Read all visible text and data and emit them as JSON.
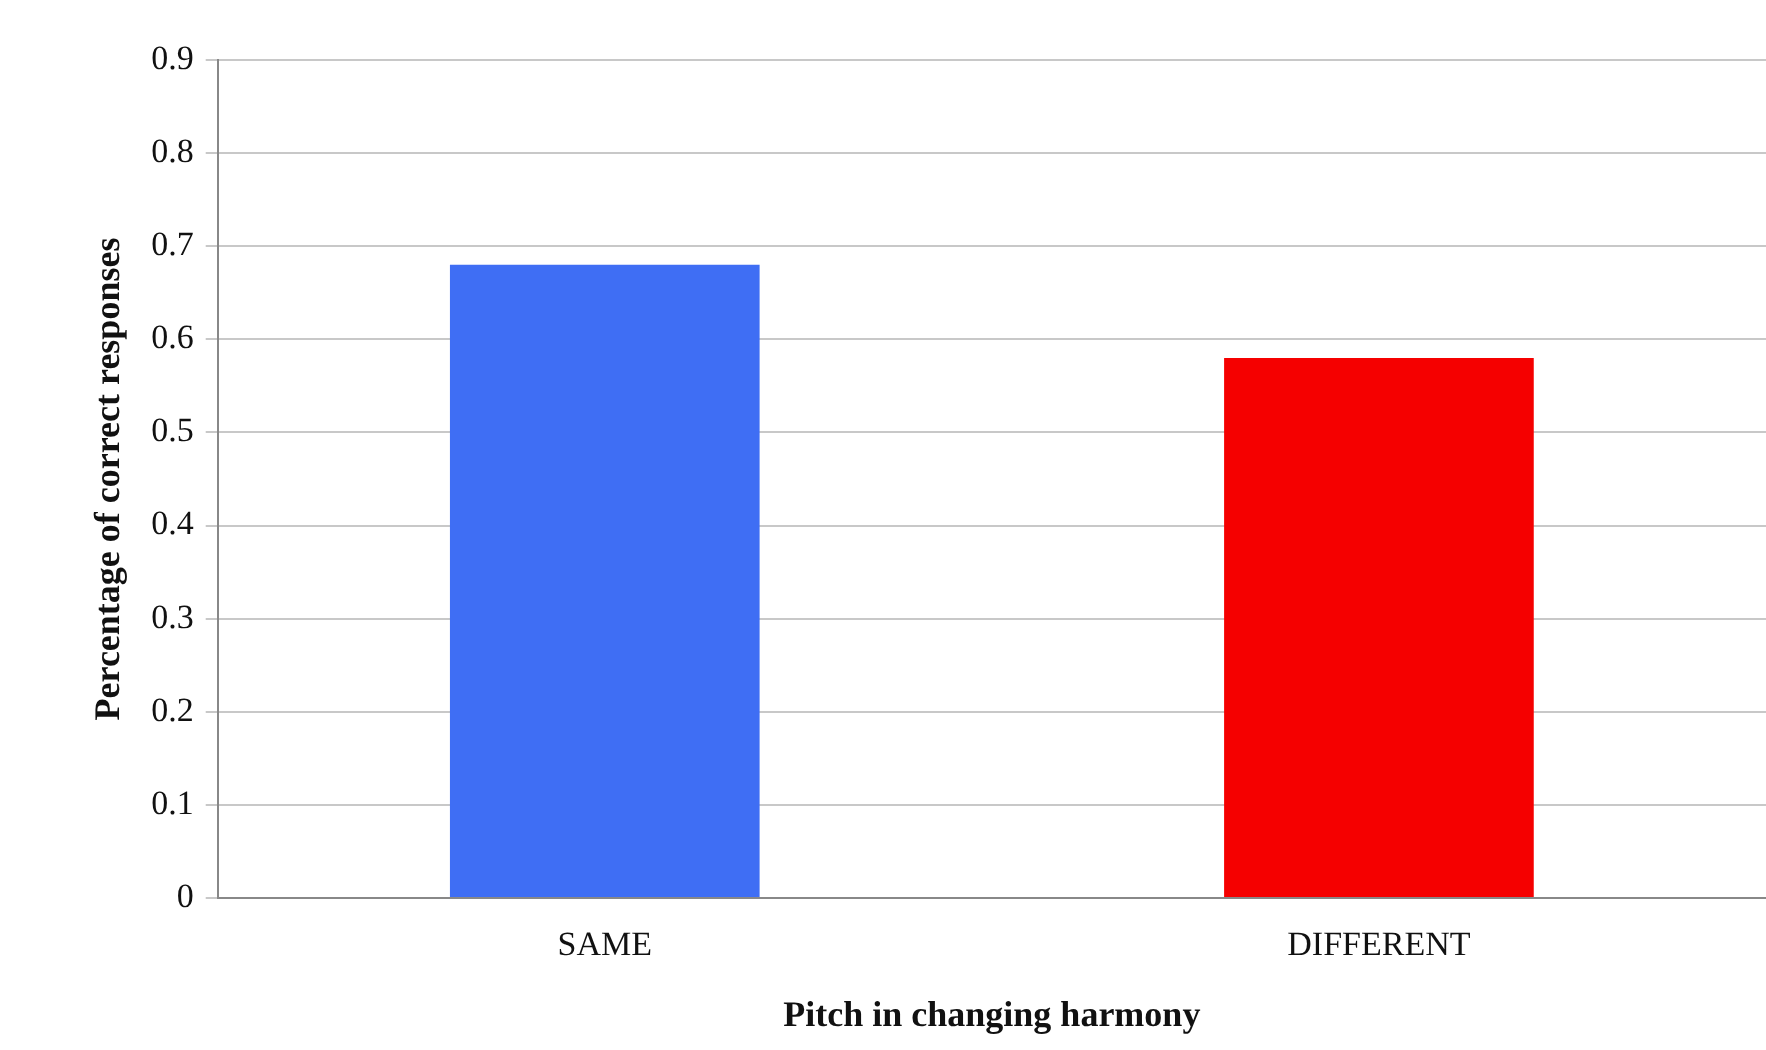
{
  "chart_data": {
    "type": "bar",
    "xlabel": "Pitch in changing harmony",
    "ylabel": "Percentage of correct responses",
    "categories": [
      "SAME",
      "DIFFERENT"
    ],
    "values": [
      0.68,
      0.58
    ],
    "colors": [
      "#3f6ef4",
      "#f50000"
    ],
    "ylim": [
      0,
      0.9
    ],
    "yticks": [
      0,
      0.1,
      0.2,
      0.3,
      0.4,
      0.5,
      0.6,
      0.7,
      0.8,
      0.9
    ],
    "grid": "y",
    "legend": false
  }
}
